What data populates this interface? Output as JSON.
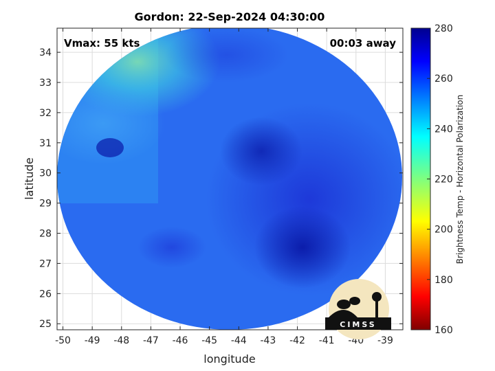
{
  "chart_data": {
    "type": "heatmap",
    "title": "Gordon: 22-Sep-2024 04:30:00",
    "xlabel": "longitude",
    "ylabel": "latitude",
    "xlim": [
      -50.2,
      -38.4
    ],
    "ylim": [
      24.8,
      34.8
    ],
    "x_ticks": [
      "-50",
      "-49",
      "-48",
      "-47",
      "-46",
      "-45",
      "-44",
      "-43",
      "-42",
      "-41",
      "-40",
      "-39"
    ],
    "y_ticks": [
      "25",
      "26",
      "27",
      "28",
      "29",
      "30",
      "31",
      "32",
      "33",
      "34"
    ],
    "grid": true,
    "annotations": {
      "vmax": "Vmax: 55 kts",
      "away": "00:03 away"
    },
    "colorbar": {
      "label": "Brightness Temp - Horizontal Polarization",
      "range": [
        160,
        280
      ],
      "ticks": [
        "280",
        "260",
        "240",
        "220",
        "200",
        "180",
        "160"
      ],
      "colormap": "jet"
    },
    "logo_text": "CIMSS",
    "features": {
      "center_lon": -44.4,
      "center_lat": 29.6,
      "background_level": 250,
      "cold_core_lon": -41.6,
      "cold_core_lat": 27.6,
      "cool_corner_lon": -47.0,
      "cool_corner_lat": 33.8
    }
  }
}
